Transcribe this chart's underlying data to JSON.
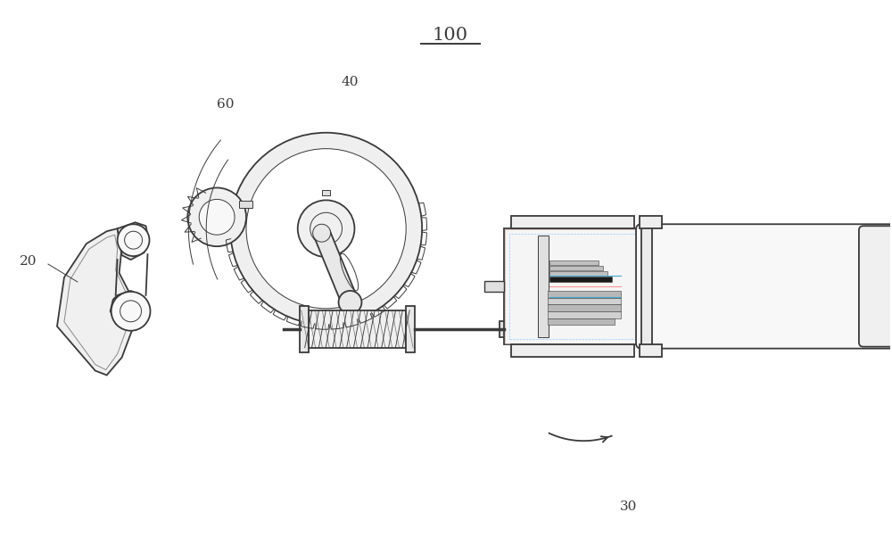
{
  "title": "100",
  "label_20": "20",
  "label_30": "30",
  "label_40": "40",
  "label_60": "60",
  "bg_color": "#ffffff",
  "line_color": "#3a3a3a",
  "fig_width": 10.0,
  "fig_height": 6.21,
  "dpi": 100,
  "lw_main": 1.3,
  "lw_thin": 0.7,
  "lw_med": 1.0
}
